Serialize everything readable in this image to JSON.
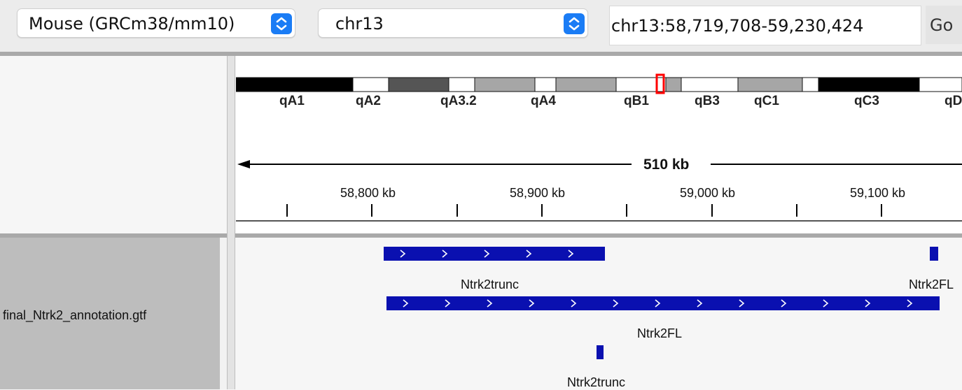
{
  "toolbar": {
    "genome": "Mouse (GRCm38/mm10)",
    "chromosome": "chr13",
    "locus": "chr13:58,719,708-59,230,424",
    "go_label": "Go",
    "accent_color": "#1a7cf5"
  },
  "ideogram": {
    "bands": [
      {
        "label": "qA1",
        "fill": "#000000"
      },
      {
        "label": "qA2",
        "fill": "#ffffff"
      },
      {
        "label": "",
        "fill": "#555555"
      },
      {
        "label": "qA3.2",
        "fill": "#ffffff"
      },
      {
        "label": "",
        "fill": "#a6a6a6"
      },
      {
        "label": "qA4",
        "fill": "#ffffff"
      },
      {
        "label": "",
        "fill": "#a6a6a6"
      },
      {
        "label": "qB1",
        "fill": "#ffffff"
      },
      {
        "label": "",
        "fill": "#a6a6a6"
      },
      {
        "label": "qB3",
        "fill": "#ffffff"
      },
      {
        "label": "qC1",
        "fill": "#a6a6a6"
      },
      {
        "label": "",
        "fill": "#ffffff"
      },
      {
        "label": "qC3",
        "fill": "#000000"
      },
      {
        "label": "qD",
        "fill": "#ffffff"
      }
    ],
    "highlight_color": "#ff0000"
  },
  "ruler": {
    "span_label": "510 kb",
    "ticks": [
      "58,800 kb",
      "58,900 kb",
      "59,000 kb",
      "59,100 kb"
    ]
  },
  "track": {
    "name": "final_Ntrk2_annotation.gtf",
    "feature_color": "#0a10b0",
    "features": [
      {
        "name": "Ntrk2trunc",
        "row": 1
      },
      {
        "name": "Ntrk2FL",
        "row": 1
      },
      {
        "name": "Ntrk2FL",
        "row": 2
      },
      {
        "name": "Ntrk2trunc",
        "row": 3
      }
    ]
  }
}
